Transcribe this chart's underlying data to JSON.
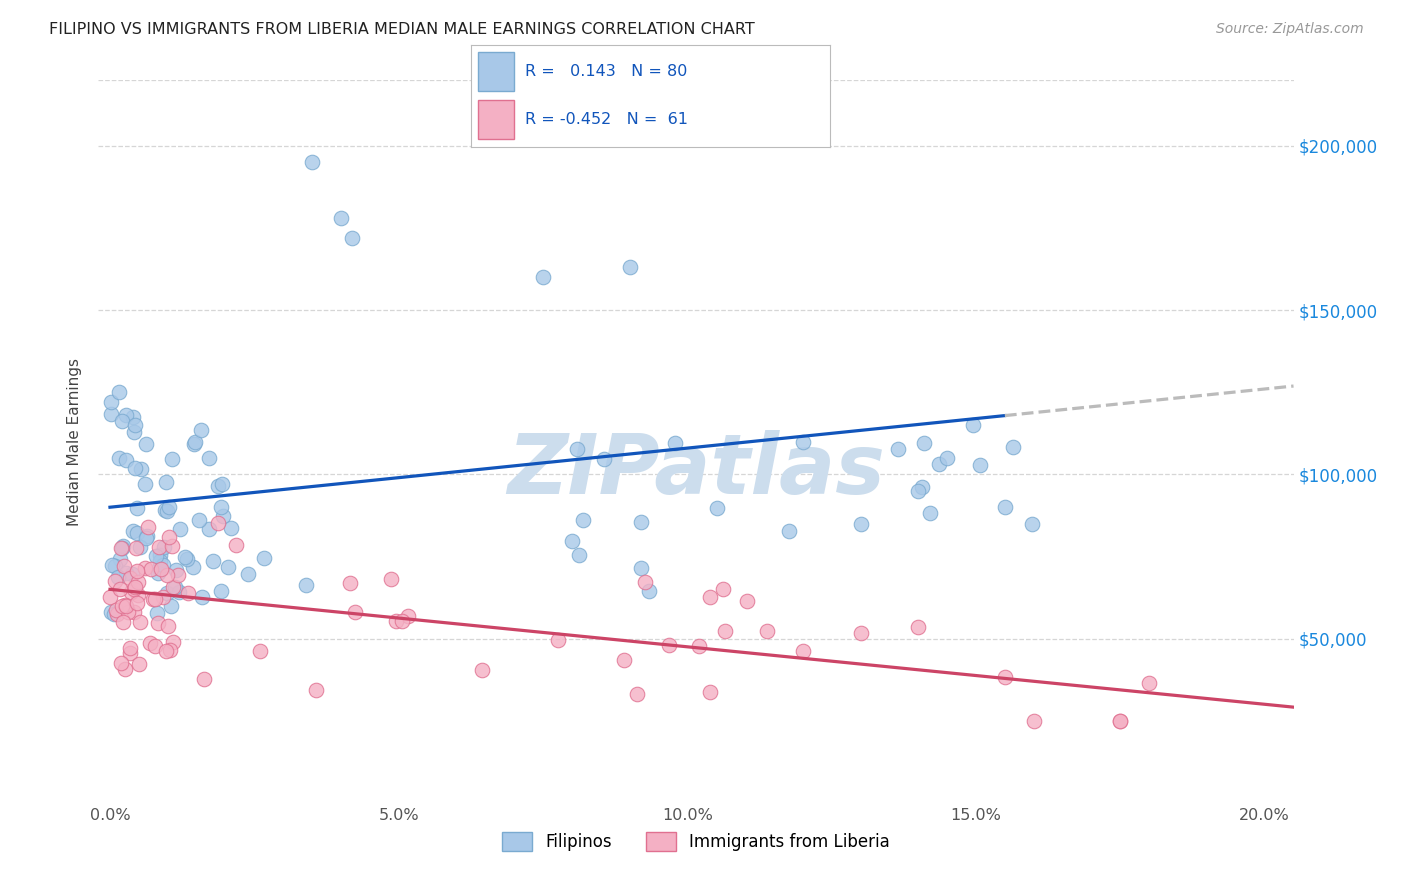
{
  "title": "FILIPINO VS IMMIGRANTS FROM LIBERIA MEDIAN MALE EARNINGS CORRELATION CHART",
  "source": "Source: ZipAtlas.com",
  "ylabel": "Median Male Earnings",
  "xlabel_ticks": [
    "0.0%",
    "5.0%",
    "10.0%",
    "15.0%",
    "20.0%"
  ],
  "xlabel_vals": [
    0.0,
    0.05,
    0.1,
    0.15,
    0.2
  ],
  "ytick_labels": [
    "$50,000",
    "$100,000",
    "$150,000",
    "$200,000"
  ],
  "ytick_vals": [
    50000,
    100000,
    150000,
    200000
  ],
  "ylim": [
    0,
    220000
  ],
  "xlim": [
    -0.002,
    0.205
  ],
  "filipino_color": "#a8c8e8",
  "liberia_color": "#f4b0c4",
  "filipino_edge": "#7aaad0",
  "liberia_edge": "#e07090",
  "trend_filipino_color": "#1155bb",
  "trend_liberia_color": "#cc4466",
  "trend_dashed_color": "#bbbbbb",
  "watermark": "ZIPatlas",
  "watermark_color": "#ccdded",
  "legend_label_filipino": "Filipinos",
  "legend_label_liberia": "Immigrants from Liberia",
  "R_filipino": 0.143,
  "N_filipino": 80,
  "R_liberia": -0.452,
  "N_liberia": 61,
  "fil_intercept": 90000,
  "fil_slope": 180000,
  "lib_intercept": 65000,
  "lib_slope": -175000,
  "background_color": "#ffffff",
  "grid_color": "#cccccc",
  "title_color": "#222222",
  "axis_label_color": "#444444",
  "ytick_color": "#1a88dd",
  "source_color": "#999999"
}
